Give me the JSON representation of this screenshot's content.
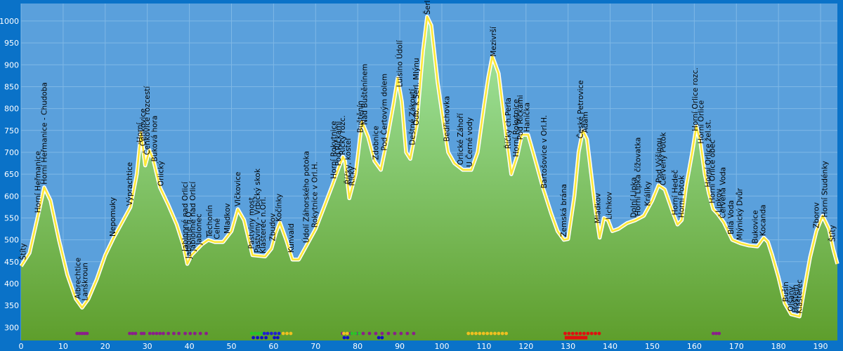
{
  "chart_data": {
    "type": "area",
    "title": "",
    "xlabel": "",
    "ylabel": "",
    "xlim": [
      0,
      194
    ],
    "ylim": [
      270,
      1040
    ],
    "x_ticks": [
      0,
      10,
      20,
      30,
      40,
      50,
      60,
      70,
      80,
      90,
      100,
      110,
      120,
      130,
      140,
      150,
      160,
      170,
      180,
      190
    ],
    "y_ticks": [
      300,
      350,
      400,
      450,
      500,
      550,
      600,
      650,
      700,
      750,
      800,
      850,
      900,
      950,
      1000
    ],
    "grid": true,
    "colors": {
      "background": "#0a72c8",
      "plot_background": "#5aa0dc",
      "grid": "#7fb8e6",
      "fill_top": "#a6eaa6",
      "fill_bottom": "#5e9e2c",
      "route_line": "#ffe838",
      "route_line_low": "#f0a040",
      "outline": "#ffffff"
    },
    "profile": [
      [
        0,
        440
      ],
      [
        2,
        470
      ],
      [
        4,
        555
      ],
      [
        5.5,
        620
      ],
      [
        7,
        590
      ],
      [
        9,
        500
      ],
      [
        11,
        420
      ],
      [
        13,
        365
      ],
      [
        14.5,
        345
      ],
      [
        16,
        365
      ],
      [
        18,
        410
      ],
      [
        20,
        465
      ],
      [
        22,
        505
      ],
      [
        24,
        540
      ],
      [
        26,
        575
      ],
      [
        27.5,
        650
      ],
      [
        28.5,
        745
      ],
      [
        29.5,
        670
      ],
      [
        30.5,
        705
      ],
      [
        31.5,
        680
      ],
      [
        33,
        620
      ],
      [
        35,
        580
      ],
      [
        37,
        535
      ],
      [
        38.5,
        490
      ],
      [
        39.5,
        445
      ],
      [
        40.5,
        465
      ],
      [
        42,
        480
      ],
      [
        43,
        490
      ],
      [
        44.5,
        500
      ],
      [
        46,
        495
      ],
      [
        48,
        495
      ],
      [
        50,
        520
      ],
      [
        51.5,
        570
      ],
      [
        53,
        545
      ],
      [
        55,
        465
      ],
      [
        58,
        462
      ],
      [
        59.5,
        480
      ],
      [
        60.5,
        515
      ],
      [
        61.5,
        540
      ],
      [
        63,
        500
      ],
      [
        64.5,
        455
      ],
      [
        66,
        455
      ],
      [
        68,
        490
      ],
      [
        70,
        525
      ],
      [
        72,
        575
      ],
      [
        74,
        625
      ],
      [
        75.5,
        665
      ],
      [
        76.5,
        690
      ],
      [
        77,
        680
      ],
      [
        78,
        595
      ],
      [
        79.5,
        650
      ],
      [
        81,
        770
      ],
      [
        82.5,
        735
      ],
      [
        84,
        680
      ],
      [
        85.5,
        660
      ],
      [
        87,
        730
      ],
      [
        88.5,
        810
      ],
      [
        89.5,
        870
      ],
      [
        90.5,
        815
      ],
      [
        91.5,
        700
      ],
      [
        92.5,
        685
      ],
      [
        94,
        760
      ],
      [
        95.5,
        930
      ],
      [
        96.5,
        1010
      ],
      [
        97.5,
        990
      ],
      [
        99,
        860
      ],
      [
        100.5,
        760
      ],
      [
        101.5,
        700
      ],
      [
        103,
        675
      ],
      [
        105,
        660
      ],
      [
        107,
        660
      ],
      [
        108.5,
        700
      ],
      [
        110,
        805
      ],
      [
        111,
        870
      ],
      [
        112,
        920
      ],
      [
        113.5,
        880
      ],
      [
        115,
        760
      ],
      [
        116.5,
        650
      ],
      [
        118,
        695
      ],
      [
        119,
        740
      ],
      [
        120.5,
        740
      ],
      [
        122,
        690
      ],
      [
        124,
        620
      ],
      [
        126,
        560
      ],
      [
        127.5,
        520
      ],
      [
        129,
        500
      ],
      [
        130,
        502
      ],
      [
        131.5,
        600
      ],
      [
        132.5,
        700
      ],
      [
        133.5,
        750
      ],
      [
        134.5,
        730
      ],
      [
        135.5,
        650
      ],
      [
        136.5,
        570
      ],
      [
        137.5,
        505
      ],
      [
        138.5,
        550
      ],
      [
        139.5,
        545
      ],
      [
        140.5,
        520
      ],
      [
        142,
        525
      ],
      [
        144,
        538
      ],
      [
        146,
        545
      ],
      [
        148,
        555
      ],
      [
        150,
        590
      ],
      [
        151.5,
        625
      ],
      [
        153,
        615
      ],
      [
        155,
        560
      ],
      [
        156,
        535
      ],
      [
        157,
        545
      ],
      [
        158,
        620
      ],
      [
        159.5,
        700
      ],
      [
        160.5,
        760
      ],
      [
        161.5,
        720
      ],
      [
        162.5,
        650
      ],
      [
        163.5,
        605
      ],
      [
        164.5,
        570
      ],
      [
        165.5,
        560
      ],
      [
        167,
        540
      ],
      [
        169,
        500
      ],
      [
        171,
        492
      ],
      [
        173,
        487
      ],
      [
        175,
        485
      ],
      [
        176.5,
        505
      ],
      [
        177.5,
        495
      ],
      [
        178.5,
        465
      ],
      [
        180,
        415
      ],
      [
        181.5,
        355
      ],
      [
        183,
        330
      ],
      [
        185,
        325
      ],
      [
        186,
        380
      ],
      [
        187.5,
        460
      ],
      [
        189,
        520
      ],
      [
        190.5,
        555
      ],
      [
        192,
        525
      ],
      [
        193,
        480
      ],
      [
        194,
        445
      ]
    ],
    "place_labels": [
      {
        "km": 0.5,
        "text": "Štíty"
      },
      {
        "km": 4.0,
        "text": "Horní Heřmanice"
      },
      {
        "km": 5.5,
        "text": "Horní Heřmanice - Chudoba"
      },
      {
        "km": 13.5,
        "text": "Albrechtice"
      },
      {
        "km": 15.2,
        "text": "Lanškroun"
      },
      {
        "km": 21.8,
        "text": "Nepomuky"
      },
      {
        "km": 25.8,
        "text": "Výprachtice"
      },
      {
        "km": 28.2,
        "text": "Horní"
      },
      {
        "km": 29.0,
        "text": "Čenkovice"
      },
      {
        "km": 30.0,
        "text": "Čenkovice rozcestí"
      },
      {
        "km": 31.7,
        "text": "Buková hora"
      },
      {
        "km": 33.2,
        "text": "Orlický"
      },
      {
        "km": 39.0,
        "text": "Jablonné nad Orlicí"
      },
      {
        "km": 39.8,
        "text": "Jablonné n.O."
      },
      {
        "km": 40.8,
        "text": "Jablonné nad Orlicí"
      },
      {
        "km": 42.2,
        "text": "Jablonec"
      },
      {
        "km": 44.8,
        "text": "Těchonín"
      },
      {
        "km": 46.6,
        "text": "Celné"
      },
      {
        "km": 49.0,
        "text": "Mladkov"
      },
      {
        "km": 51.5,
        "text": "Vlčkovice"
      },
      {
        "km": 54.8,
        "text": "Pastviny most"
      },
      {
        "km": 56.2,
        "text": "Pastviny - Vrbičký skok"
      },
      {
        "km": 57.5,
        "text": "Klášterec n.Orl."
      },
      {
        "km": 59.8,
        "text": "Zbudov"
      },
      {
        "km": 61.3,
        "text": "Kočínky"
      },
      {
        "km": 64.2,
        "text": "Kunvald"
      },
      {
        "km": 67.8,
        "text": "Údolí Záhorského potoka"
      },
      {
        "km": 69.8,
        "text": "Rokytnice v Orl.H."
      },
      {
        "km": 74.3,
        "text": "Horní Rokytnice"
      },
      {
        "km": 75.4,
        "text": "Pod Říčkami"
      },
      {
        "km": 76.4,
        "text": "Říčky rozc."
      },
      {
        "km": 77.7,
        "text": "Říčky, kostel"
      },
      {
        "km": 78.6,
        "text": "Říčky"
      },
      {
        "km": 80.6,
        "text": "Buštěnín"
      },
      {
        "km": 81.6,
        "text": "Nad Buštěnínem"
      },
      {
        "km": 84.3,
        "text": "Zdobnice"
      },
      {
        "km": 86.3,
        "text": "Pod Čertovým dolem"
      },
      {
        "km": 90.0,
        "text": "Luisino Údolí"
      },
      {
        "km": 93.0,
        "text": "Deštné Zákoutí"
      },
      {
        "km": 93.9,
        "text": "Odb. k Šerl. Mlýnu"
      },
      {
        "km": 96.6,
        "text": "Šerlich"
      },
      {
        "km": 101.2,
        "text": "Bedřichovka"
      },
      {
        "km": 104.4,
        "text": "Orlické Záhoří"
      },
      {
        "km": 106.6,
        "text": "U Černé vody"
      },
      {
        "km": 112.3,
        "text": "Mezivrší"
      },
      {
        "km": 115.8,
        "text": "Říčky ch.Perla"
      },
      {
        "km": 117.6,
        "text": "Horní Rokytnice"
      },
      {
        "km": 118.6,
        "text": "Pod Říčkami"
      },
      {
        "km": 120.2,
        "text": "Hanička"
      },
      {
        "km": 124.3,
        "text": "Bartošovice v Orl.H."
      },
      {
        "km": 129.0,
        "text": "Zemská brána"
      },
      {
        "km": 133.0,
        "text": "České Petrovice"
      },
      {
        "km": 134.1,
        "text": "Adam"
      },
      {
        "km": 137.1,
        "text": "Mladkov"
      },
      {
        "km": 139.7,
        "text": "Lichkov"
      },
      {
        "km": 145.6,
        "text": "Dolní Lipka"
      },
      {
        "km": 146.6,
        "text": "Horní Lipka čížovatka"
      },
      {
        "km": 148.9,
        "text": "Králíky"
      },
      {
        "km": 151.6,
        "text": "Pod Výšinou"
      },
      {
        "km": 152.6,
        "text": "Červený Potok"
      },
      {
        "km": 155.4,
        "text": "Horní Hedeč"
      },
      {
        "km": 156.9,
        "text": "Horní Potok"
      },
      {
        "km": 160.2,
        "text": "Horní Orlice rozc."
      },
      {
        "km": 161.6,
        "text": "Horní Orlice"
      },
      {
        "km": 163.3,
        "text": "Horní Orlice žel.st."
      },
      {
        "km": 164.3,
        "text": "Horní Orlice obec"
      },
      {
        "km": 165.8,
        "text": "Lipkov"
      },
      {
        "km": 166.8,
        "text": "Červená Voda"
      },
      {
        "km": 168.7,
        "text": "Bílá Voda"
      },
      {
        "km": 170.8,
        "text": "Mlýnický Dvůr"
      },
      {
        "km": 174.5,
        "text": "Bukovice"
      },
      {
        "km": 176.3,
        "text": "Kocanda"
      },
      {
        "km": 181.7,
        "text": "Bušín"
      },
      {
        "km": 183.0,
        "text": "Olšany"
      },
      {
        "km": 184.0,
        "text": "Hoštejn"
      },
      {
        "km": 185.0,
        "text": "Klášterec"
      },
      {
        "km": 189.0,
        "text": "Zborov"
      },
      {
        "km": 191.0,
        "text": "Horní Studénky"
      },
      {
        "km": 192.8,
        "text": "Štíty"
      }
    ],
    "markers": {
      "purple": [
        13.3,
        13.9,
        14.5,
        15.1,
        15.7,
        25.8,
        26.5,
        27.2,
        28.6,
        29.2,
        30.6,
        31.4,
        32.2,
        33.0,
        33.8,
        35.0,
        36.3,
        37.5,
        39.0,
        40.2,
        41.3,
        42.6,
        44.0,
        76.4,
        78.3,
        79.8,
        81.3,
        82.8,
        84.3,
        85.8,
        87.3,
        88.8,
        90.3,
        91.8,
        93.3,
        164.5,
        165.2,
        165.9
      ],
      "green": [
        54.8,
        55.6,
        56.4,
        57.2,
        78.6,
        79.5,
        80.4
      ],
      "blue": [
        57.8,
        58.6,
        59.5,
        60.4,
        61.3
      ],
      "gold": [
        62.3,
        63.2,
        64.1,
        76.7,
        77.5,
        106.3,
        107.2,
        108.1,
        109.0,
        109.9,
        110.8,
        111.7,
        112.6,
        113.5,
        114.4,
        115.3
      ],
      "red": [
        129.3,
        130.2,
        131.1,
        132.0,
        132.9,
        133.8,
        134.7,
        135.6,
        136.5,
        137.4
      ],
      "darkblue": [
        55.2,
        56.2,
        57.2,
        58.2,
        60.2,
        61.0,
        76.8,
        77.6,
        85.0,
        85.8
      ],
      "red_line": [
        [
          129.2,
          134.6
        ]
      ]
    }
  }
}
